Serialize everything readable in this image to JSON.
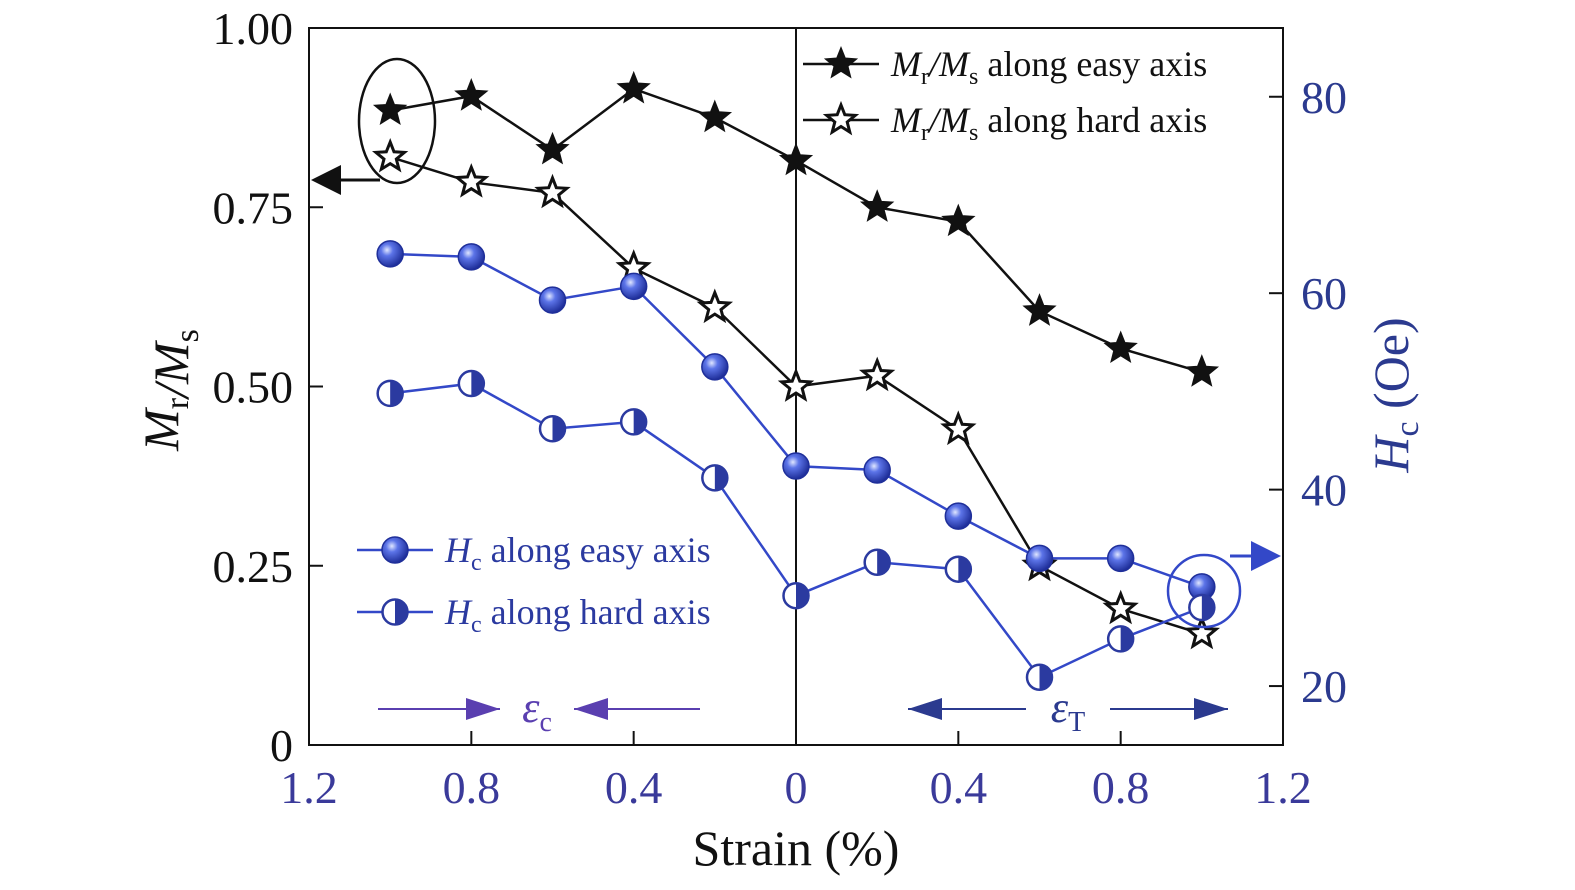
{
  "chart_data": {
    "type": "line",
    "x_axis": {
      "title": "Strain (%)",
      "ticks": [
        "1.2",
        "0.8",
        "0.4",
        "0",
        "0.4",
        "0.8",
        "1.2"
      ],
      "range": [
        -1.2,
        1.2
      ],
      "regions": {
        "compressive_label": "εc",
        "tensile_label": "εT"
      }
    },
    "y_left": {
      "title": "Mr/Ms",
      "ticks": [
        "0",
        "0.25",
        "0.50",
        "0.75",
        "1.00"
      ],
      "range": [
        0,
        1.0
      ]
    },
    "y_right": {
      "title": "Hc (Oe)",
      "ticks": [
        "20",
        "40",
        "60",
        "80"
      ],
      "range": [
        14,
        87
      ]
    },
    "x": [
      -1.0,
      -0.8,
      -0.6,
      -0.4,
      -0.2,
      0.0,
      0.2,
      0.4,
      0.6,
      0.8,
      1.0
    ],
    "series": [
      {
        "name": "Mr/Ms along easy axis",
        "axis": "left",
        "marker": "filled-star",
        "color": "#111111",
        "values": [
          0.885,
          0.905,
          0.83,
          0.915,
          0.875,
          0.815,
          0.75,
          0.73,
          0.605,
          0.553,
          0.52
        ]
      },
      {
        "name": "Mr/Ms along hard axis",
        "axis": "left",
        "marker": "open-star",
        "color": "#111111",
        "values": [
          0.82,
          0.785,
          0.77,
          0.665,
          0.61,
          0.5,
          0.515,
          0.44,
          0.25,
          0.19,
          0.155
        ]
      },
      {
        "name": "Hc along easy axis",
        "axis": "right",
        "marker": "filled-circle",
        "color": "#3348c8",
        "values": [
          64.0,
          63.7,
          59.3,
          60.7,
          52.5,
          42.4,
          42.0,
          37.3,
          33.0,
          33.0,
          30.1
        ]
      },
      {
        "name": "Hc along hard axis",
        "axis": "right",
        "marker": "half-circle",
        "color": "#3348c8",
        "values": [
          49.8,
          50.8,
          46.2,
          46.9,
          41.2,
          29.2,
          32.6,
          31.9,
          20.9,
          24.8,
          28.0
        ]
      }
    ],
    "legend": [
      {
        "main": "M",
        "sub1": "r",
        "slash": "/M",
        "sub2": "s",
        "rest": " along easy axis"
      },
      {
        "main": "M",
        "sub1": "r",
        "slash": "/M",
        "sub2": "s",
        "rest": " along hard axis"
      },
      {
        "main": "H",
        "sub1": "c",
        "rest": " along easy axis"
      },
      {
        "main": "H",
        "sub1": "c",
        "rest": " along hard axis"
      }
    ],
    "legend_placement": {
      "Mr/Ms": "top-right",
      "Hc": "bottom-left"
    },
    "grid": false,
    "colors": {
      "left_axis": "#111111",
      "right_axis": "#2b3a8f",
      "blue_series": "#3348c8",
      "arrow_compressive": "#5a3fb0",
      "arrow_tensile": "#2b3a8f"
    }
  }
}
